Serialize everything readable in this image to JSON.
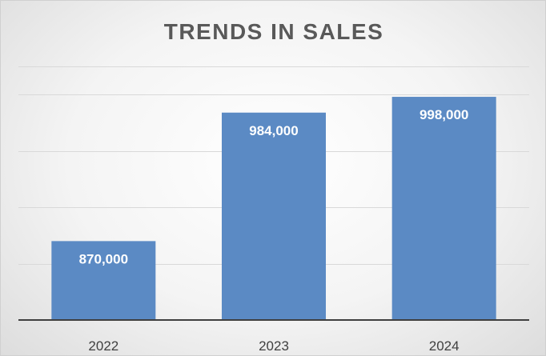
{
  "chart_data": {
    "type": "bar",
    "title": "TRENDS IN SALES",
    "categories": [
      "2022",
      "2023",
      "2024"
    ],
    "values": [
      870000,
      984000,
      998000
    ],
    "data_labels": [
      "870,000",
      "984,000",
      "998,000"
    ],
    "xlabel": "",
    "ylabel": "",
    "ylim": [
      800000,
      1025000
    ],
    "gridlines": [
      850000,
      900000,
      950000,
      1000000
    ],
    "grid": true,
    "legend": "none",
    "colors": {
      "bar": "#5b8ac4",
      "title": "#595959",
      "axis": "#3f3f3f",
      "grid": "#d9d9d9"
    }
  }
}
